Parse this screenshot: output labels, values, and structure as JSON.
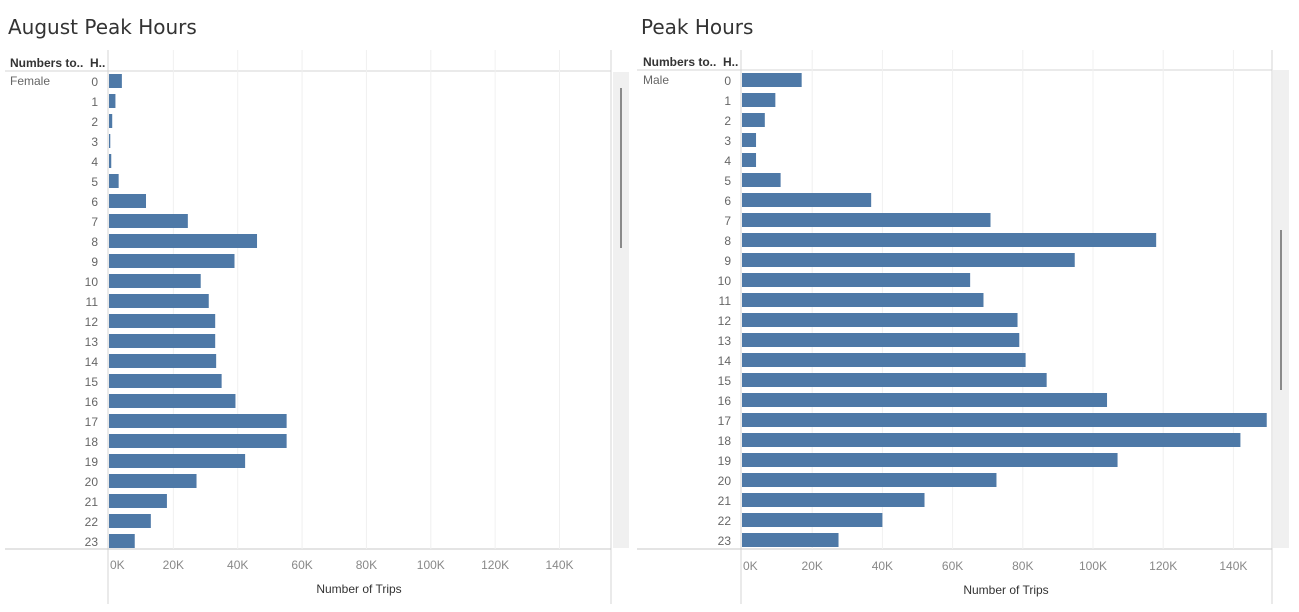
{
  "sheets": [
    {
      "title": "August Peak Hours",
      "row_header_1": "Numbers to..",
      "row_header_2": "H..",
      "group_label": "Female",
      "axis_title": "Number of Trips"
    },
    {
      "title": "Peak Hours",
      "row_header_1": "Numbers to..",
      "row_header_2": "H..",
      "group_label": "Male",
      "axis_title": "Number of Trips"
    }
  ],
  "chart_data": [
    {
      "type": "bar",
      "orientation": "horizontal",
      "title": "August Peak Hours",
      "xlabel": "Number of Trips",
      "ylabel": "H..",
      "group": "Female",
      "categories": [
        "0",
        "1",
        "2",
        "3",
        "4",
        "5",
        "6",
        "7",
        "8",
        "9",
        "10",
        "11",
        "12",
        "13",
        "14",
        "15",
        "16",
        "17",
        "18",
        "19",
        "20",
        "21",
        "22",
        "23"
      ],
      "values": [
        4000,
        2000,
        1000,
        400,
        700,
        3000,
        11500,
        24500,
        46000,
        39000,
        28500,
        31000,
        33000,
        33000,
        33300,
        35000,
        39300,
        55200,
        55200,
        42300,
        27200,
        18000,
        13000,
        8000
      ],
      "xlim": [
        0,
        156000
      ],
      "xticks": [
        "0K",
        "20K",
        "40K",
        "60K",
        "80K",
        "100K",
        "120K",
        "140K"
      ],
      "xtick_values": [
        0,
        20000,
        40000,
        60000,
        80000,
        100000,
        120000,
        140000
      ],
      "grid": true,
      "bar_color": "#4e79a7"
    },
    {
      "type": "bar",
      "orientation": "horizontal",
      "title": "Peak Hours",
      "xlabel": "Number of Trips",
      "ylabel": "H..",
      "group": "Male",
      "categories": [
        "0",
        "1",
        "2",
        "3",
        "4",
        "5",
        "6",
        "7",
        "8",
        "9",
        "10",
        "11",
        "12",
        "13",
        "14",
        "15",
        "16",
        "17",
        "18",
        "19",
        "20",
        "21",
        "22",
        "23"
      ],
      "values": [
        17000,
        9500,
        6500,
        4000,
        4000,
        11000,
        36800,
        70800,
        118000,
        94800,
        65000,
        68800,
        78500,
        79000,
        80800,
        86800,
        104000,
        149500,
        142000,
        107000,
        72500,
        52000,
        40000,
        27500
      ],
      "xlim": [
        0,
        151000
      ],
      "xticks": [
        "0K",
        "20K",
        "40K",
        "60K",
        "80K",
        "100K",
        "120K",
        "140K"
      ],
      "xtick_values": [
        0,
        20000,
        40000,
        60000,
        80000,
        100000,
        120000,
        140000
      ],
      "grid": true,
      "bar_color": "#4e79a7"
    }
  ]
}
